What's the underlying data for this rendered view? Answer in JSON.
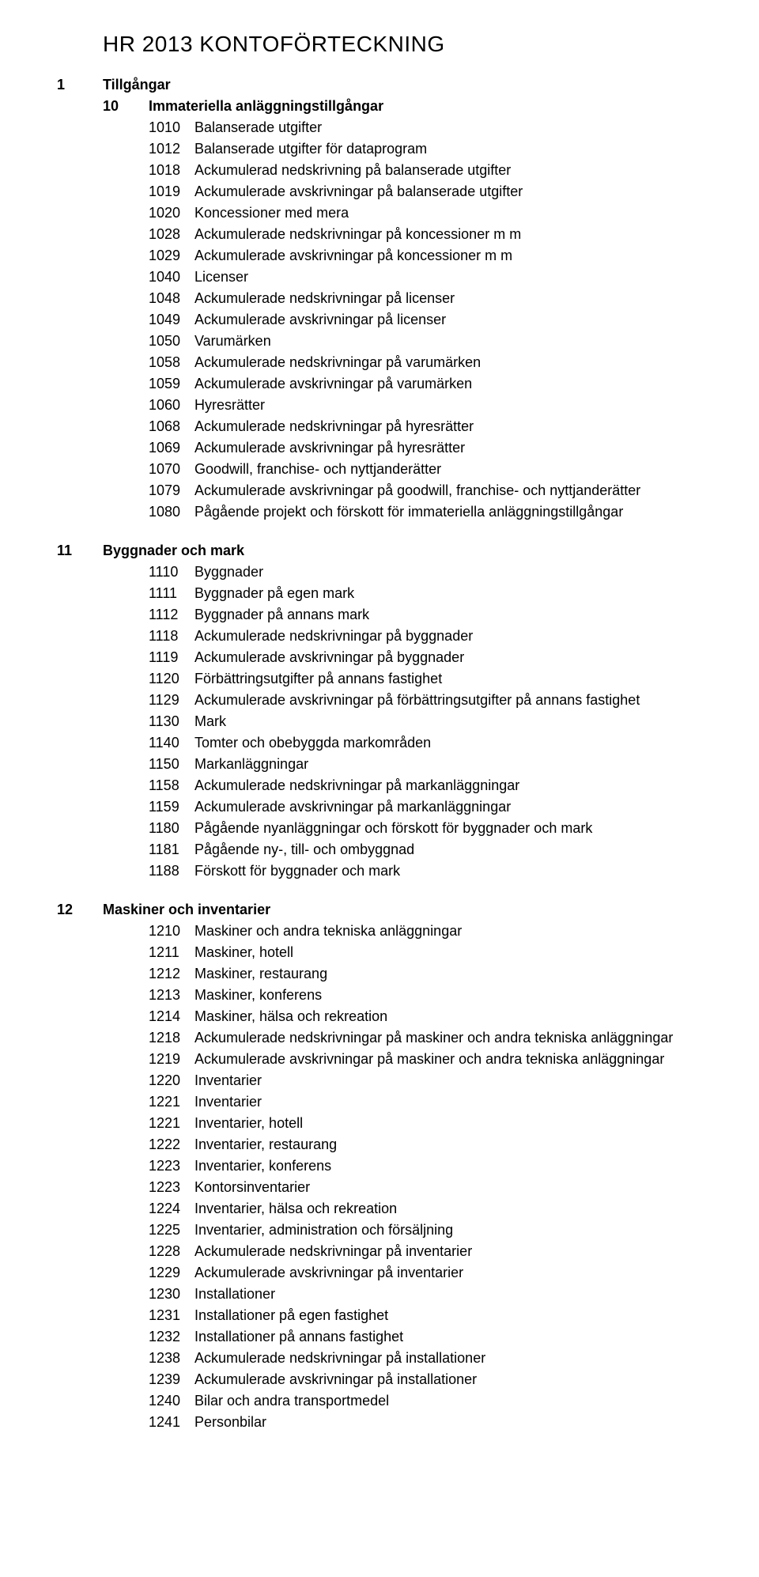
{
  "title": "HR 2013 KONTOFÖRTECKNING",
  "top_code": "1",
  "top_title": "Tillgångar",
  "sections": [
    {
      "group_code": "10",
      "group_title": "Immateriella anläggningstillgångar",
      "rows": [
        {
          "code": "1010",
          "desc": "Balanserade utgifter"
        },
        {
          "code": "1012",
          "desc": "Balanserade utgifter för dataprogram"
        },
        {
          "code": "1018",
          "desc": "Ackumulerad nedskrivning på balanserade utgifter"
        },
        {
          "code": "1019",
          "desc": "Ackumulerade avskrivningar på balanserade utgifter"
        },
        {
          "code": "1020",
          "desc": "Koncessioner med mera"
        },
        {
          "code": "1028",
          "desc": "Ackumulerade nedskrivningar på koncessioner m m"
        },
        {
          "code": "1029",
          "desc": "Ackumulerade avskrivningar på koncessioner m m"
        },
        {
          "code": "1040",
          "desc": "Licenser"
        },
        {
          "code": "1048",
          "desc": "Ackumulerade nedskrivningar på licenser"
        },
        {
          "code": "1049",
          "desc": "Ackumulerade avskrivningar på licenser"
        },
        {
          "code": "1050",
          "desc": "Varumärken"
        },
        {
          "code": "1058",
          "desc": "Ackumulerade nedskrivningar på varumärken"
        },
        {
          "code": "1059",
          "desc": "Ackumulerade avskrivningar på varumärken"
        },
        {
          "code": "1060",
          "desc": "Hyresrätter"
        },
        {
          "code": "1068",
          "desc": "Ackumulerade nedskrivningar på hyresrätter"
        },
        {
          "code": "1069",
          "desc": "Ackumulerade avskrivningar på hyresrätter"
        },
        {
          "code": "1070",
          "desc": "Goodwill, franchise- och nyttjanderätter"
        },
        {
          "code": "1079",
          "desc": "Ackumulerade avskrivningar på goodwill, franchise- och nyttjanderätter"
        },
        {
          "code": "1080",
          "desc": "Pågående projekt och förskott för immateriella anläggningstillgångar"
        }
      ]
    },
    {
      "group_code": "11",
      "group_title": "Byggnader och mark",
      "rows": [
        {
          "code": "1110",
          "desc": "Byggnader"
        },
        {
          "code": "1111",
          "desc": "Byggnader på egen mark"
        },
        {
          "code": "1112",
          "desc": "Byggnader på annans mark"
        },
        {
          "code": "1118",
          "desc": "Ackumulerade nedskrivningar på byggnader"
        },
        {
          "code": "1119",
          "desc": "Ackumulerade avskrivningar på byggnader"
        },
        {
          "code": "1120",
          "desc": "Förbättringsutgifter på annans fastighet"
        },
        {
          "code": "1129",
          "desc": "Ackumulerade avskrivningar på förbättringsutgifter på annans fastighet"
        },
        {
          "code": "1130",
          "desc": "Mark"
        },
        {
          "code": "1140",
          "desc": "Tomter och obebyggda markområden"
        },
        {
          "code": "1150",
          "desc": "Markanläggningar"
        },
        {
          "code": "1158",
          "desc": "Ackumulerade nedskrivningar på markanläggningar"
        },
        {
          "code": "1159",
          "desc": "Ackumulerade avskrivningar på markanläggningar"
        },
        {
          "code": "1180",
          "desc": "Pågående nyanläggningar och förskott för byggnader och mark"
        },
        {
          "code": "1181",
          "desc": "Pågående ny-, till- och ombyggnad"
        },
        {
          "code": "1188",
          "desc": "Förskott för byggnader och mark"
        }
      ]
    },
    {
      "group_code": "12",
      "group_title": "Maskiner och inventarier",
      "rows": [
        {
          "code": "1210",
          "desc": "Maskiner och andra tekniska anläggningar"
        },
        {
          "code": "1211",
          "desc": "Maskiner, hotell"
        },
        {
          "code": "1212",
          "desc": "Maskiner, restaurang"
        },
        {
          "code": "1213",
          "desc": "Maskiner, konferens"
        },
        {
          "code": "1214",
          "desc": "Maskiner, hälsa och rekreation"
        },
        {
          "code": "1218",
          "desc": "Ackumulerade nedskrivningar på maskiner och andra tekniska anläggningar"
        },
        {
          "code": "1219",
          "desc": "Ackumulerade avskrivningar på maskiner och andra tekniska anläggningar"
        },
        {
          "code": "1220",
          "desc": "Inventarier"
        },
        {
          "code": "1221",
          "desc": "Inventarier"
        },
        {
          "code": "1221",
          "desc": "Inventarier, hotell"
        },
        {
          "code": "1222",
          "desc": "Inventarier, restaurang"
        },
        {
          "code": "1223",
          "desc": "Inventarier, konferens"
        },
        {
          "code": "1223",
          "desc": "Kontorsinventarier"
        },
        {
          "code": "1224",
          "desc": "Inventarier, hälsa och rekreation"
        },
        {
          "code": "1225",
          "desc": "Inventarier, administration och försäljning"
        },
        {
          "code": "1228",
          "desc": "Ackumulerade nedskrivningar på inventarier"
        },
        {
          "code": "1229",
          "desc": "Ackumulerade avskrivningar på inventarier"
        },
        {
          "code": "1230",
          "desc": "Installationer"
        },
        {
          "code": "1231",
          "desc": "Installationer på egen fastighet"
        },
        {
          "code": "1232",
          "desc": "Installationer på annans fastighet"
        },
        {
          "code": "1238",
          "desc": "Ackumulerade nedskrivningar på installationer"
        },
        {
          "code": "1239",
          "desc": "Ackumulerade avskrivningar på installationer"
        },
        {
          "code": "1240",
          "desc": "Bilar och andra transportmedel"
        },
        {
          "code": "1241",
          "desc": "Personbilar"
        }
      ]
    }
  ]
}
